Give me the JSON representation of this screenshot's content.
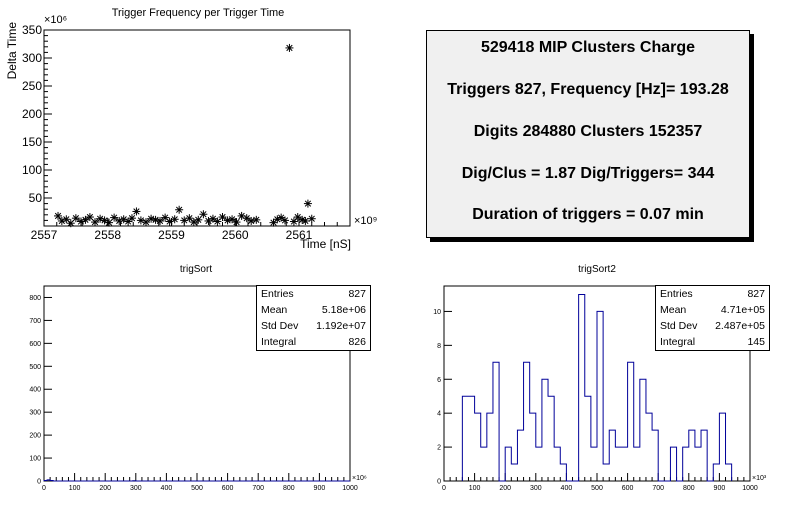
{
  "chart_data": [
    {
      "type": "scatter",
      "title": "Trigger Frequency per Trigger Time",
      "ylabel": "Delta Time",
      "xlabel": "Time [nS]",
      "y_exponent": "×10⁶",
      "x_exponent": "×10⁹",
      "xlim": [
        2557,
        2561.8
      ],
      "ylim": [
        0,
        350
      ],
      "x_ticks": [
        "2557",
        "2558",
        "2559",
        "2560",
        "2561"
      ],
      "y_ticks": [
        "50",
        "100",
        "150",
        "200",
        "250",
        "300",
        "350"
      ],
      "marker": "*",
      "series": [
        {
          "x": [
            2557.22,
            2557.28,
            2557.35,
            2557.42,
            2557.5,
            2557.58,
            2557.65,
            2557.72,
            2557.8,
            2557.88,
            2557.95,
            2558.02,
            2558.1,
            2558.18,
            2558.25,
            2558.32,
            2558.38,
            2558.45,
            2558.52,
            2558.6,
            2558.68,
            2558.75,
            2558.82,
            2558.9,
            2558.97,
            2559.05,
            2559.12,
            2559.2,
            2559.28,
            2559.35,
            2559.42,
            2559.5,
            2559.58,
            2559.65,
            2559.72,
            2559.8,
            2559.88,
            2559.95,
            2560.02,
            2560.1,
            2560.18,
            2560.25,
            2560.33,
            2560.6,
            2560.66,
            2560.72,
            2560.78,
            2560.85,
            2560.92,
            2560.98,
            2561.05,
            2561.1,
            2561.14,
            2561.2
          ],
          "y": [
            18,
            9,
            12,
            5,
            14,
            8,
            11,
            16,
            7,
            13,
            10,
            6,
            15,
            9,
            12,
            8,
            14,
            26,
            10,
            7,
            13,
            11,
            9,
            15,
            8,
            12,
            29,
            10,
            14,
            7,
            11,
            21,
            9,
            13,
            8,
            16,
            10,
            12,
            7,
            18,
            14,
            9,
            11,
            6,
            12,
            15,
            10,
            318,
            8,
            16,
            11,
            9,
            40,
            13
          ]
        }
      ]
    },
    {
      "type": "bar",
      "title": "trigSort",
      "x_exponent": "×10⁶",
      "xlim": [
        0,
        1000
      ],
      "ylim": [
        0,
        850
      ],
      "x_ticks": [
        "0",
        "100",
        "200",
        "300",
        "400",
        "500",
        "600",
        "700",
        "800",
        "900",
        "1000"
      ],
      "y_ticks": [
        "0",
        "100",
        "200",
        "300",
        "400",
        "500",
        "600",
        "700",
        "800"
      ],
      "bins_start": 0,
      "bin_width": 10,
      "values": [
        2,
        5,
        2,
        0,
        0,
        0,
        0,
        0,
        0,
        0,
        0,
        0,
        0,
        0,
        0,
        0,
        0,
        0,
        0,
        0,
        0,
        0,
        0,
        0,
        0,
        0,
        0,
        0,
        0,
        1,
        0,
        0,
        0,
        0,
        0,
        0,
        0,
        0,
        0,
        0,
        0,
        0,
        0,
        0,
        0,
        0,
        0,
        0,
        0,
        0,
        0,
        0,
        0,
        0,
        0,
        0,
        0,
        0,
        0,
        0,
        0,
        0,
        0,
        0,
        0,
        0,
        0,
        0,
        0,
        0,
        0,
        0,
        0,
        0,
        0,
        0,
        0,
        0,
        0,
        0,
        0,
        0,
        0,
        0,
        0,
        0,
        0,
        0,
        0,
        0,
        0,
        0,
        0,
        0,
        0,
        0,
        0,
        0,
        0,
        0
      ],
      "stats": [
        {
          "label": "Entries",
          "value": "827"
        },
        {
          "label": "Mean",
          "value": "5.18e+06"
        },
        {
          "label": "Std Dev",
          "value": "1.192e+07"
        },
        {
          "label": "Integral",
          "value": "826"
        }
      ]
    },
    {
      "type": "bar",
      "title": "trigSort2",
      "x_exponent": "×10³",
      "xlim": [
        0,
        1000
      ],
      "ylim": [
        0,
        11.5
      ],
      "x_ticks": [
        "0",
        "100",
        "200",
        "300",
        "400",
        "500",
        "600",
        "700",
        "800",
        "900",
        "1000"
      ],
      "y_ticks": [
        "0",
        "2",
        "4",
        "6",
        "8",
        "10"
      ],
      "bins_start": 60,
      "bin_width": 20,
      "values": [
        5,
        5,
        4,
        2,
        4,
        7,
        0,
        2,
        1,
        3,
        7,
        4,
        2,
        6,
        5,
        2,
        1,
        0,
        0,
        11,
        5,
        2,
        10,
        1,
        3,
        2,
        2,
        7,
        2,
        6,
        4,
        3,
        0,
        0,
        2,
        0,
        2,
        3,
        2,
        3,
        0,
        1,
        4,
        1
      ],
      "stats": [
        {
          "label": "Entries",
          "value": "827"
        },
        {
          "label": "Mean",
          "value": "4.71e+05"
        },
        {
          "label": "Std Dev",
          "value": "2.487e+05"
        },
        {
          "label": "Integral",
          "value": "145"
        }
      ]
    }
  ],
  "info": {
    "line1": "529418 MIP Clusters Charge",
    "line2": "Triggers 827, Frequency [Hz]= 193.28",
    "line3": "Digits 284880 Clusters 152357",
    "line4": "Dig/Clus = 1.87 Dig/Triggers= 344",
    "line5": "Duration of triggers = 0.07 min"
  }
}
